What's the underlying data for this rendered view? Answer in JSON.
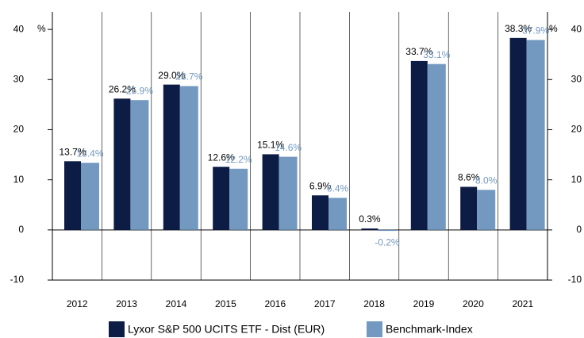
{
  "chart_data": {
    "type": "bar",
    "categories": [
      "2012",
      "2013",
      "2014",
      "2015",
      "2016",
      "2017",
      "2018",
      "2019",
      "2020",
      "2021"
    ],
    "series": [
      {
        "name": "Lyxor S&P 500 UCITS ETF - Dist (EUR)",
        "color": "#0c1c45",
        "values": [
          13.7,
          26.2,
          29.0,
          12.6,
          15.1,
          6.9,
          0.3,
          33.7,
          8.6,
          38.3
        ],
        "value_labels": [
          "13.7%",
          "26.2%",
          "29.0%",
          "12.6%",
          "15.1%",
          "6.9%",
          "0.3%",
          "33.7%",
          "8.6%",
          "38.3%"
        ]
      },
      {
        "name": "Benchmark-Index",
        "color": "#7399c0",
        "values": [
          13.4,
          25.9,
          28.7,
          12.2,
          14.6,
          6.4,
          -0.2,
          33.1,
          8.0,
          37.9
        ],
        "value_labels": [
          "13.4%",
          "25.9%",
          "28.7%",
          "12.2%",
          "14.6%",
          "6.4%",
          "-0.2%",
          "33.1%",
          "8.0%",
          "37.9%"
        ]
      }
    ],
    "y_unit": "%",
    "ylim": [
      -10,
      43.5
    ],
    "yticks": [
      -10,
      0,
      10,
      20,
      30,
      40
    ],
    "y2lim": [
      -10,
      43.5
    ],
    "y2ticks": [
      -10,
      0,
      10,
      20,
      30,
      40
    ],
    "legend": "bottom"
  }
}
